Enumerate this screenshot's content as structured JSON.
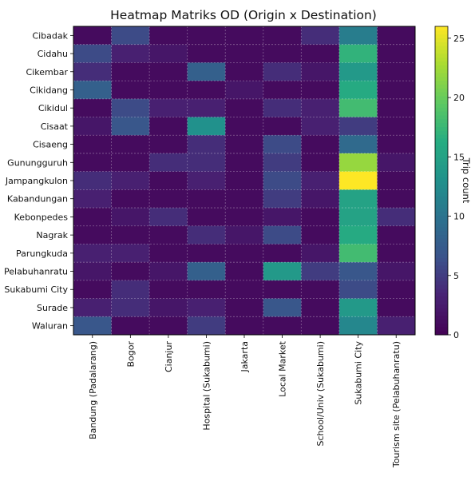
{
  "chart_data": {
    "type": "heatmap",
    "title": "Heatmap Matriks OD (Origin x Destination)",
    "rows": [
      "Cibadak",
      "Cidahu",
      "Cikembar",
      "Cikidang",
      "Cikidul",
      "Cisaat",
      "Cisaeng",
      "Gunungguruh",
      "Jampangkulon",
      "Kabandungan",
      "Kebonpedes",
      "Nagrak",
      "Parungkuda",
      "Pelabuhanratu",
      "Sukabumi City",
      "Surade",
      "Waluran"
    ],
    "columns": [
      "Bandung (Padalarang)",
      "Bogor",
      "Cianjur",
      "Hospital (Sukabumi)",
      "Jakarta",
      "Local Market",
      "School/Univ (Sukabumi)",
      "Sukabumi City",
      "Tourism site (Pelabuhanratu)"
    ],
    "values": [
      [
        1,
        6,
        1,
        1,
        1,
        1,
        4,
        11,
        1
      ],
      [
        6,
        3,
        2,
        1,
        1,
        1,
        1,
        17,
        1
      ],
      [
        4,
        1,
        1,
        8,
        1,
        4,
        2,
        14,
        1
      ],
      [
        8,
        1,
        1,
        1,
        2,
        1,
        1,
        16,
        1
      ],
      [
        1,
        6,
        3,
        3,
        1,
        4,
        3,
        18,
        1
      ],
      [
        2,
        7,
        1,
        13,
        1,
        1,
        3,
        5,
        1
      ],
      [
        1,
        1,
        1,
        4,
        1,
        6,
        1,
        9,
        1
      ],
      [
        1,
        1,
        4,
        4,
        1,
        5,
        1,
        22,
        2
      ],
      [
        4,
        3,
        1,
        3,
        1,
        6,
        3,
        26,
        1
      ],
      [
        3,
        1,
        1,
        1,
        1,
        5,
        2,
        15,
        1
      ],
      [
        1,
        2,
        4,
        1,
        1,
        2,
        1,
        15,
        4
      ],
      [
        1,
        1,
        1,
        4,
        2,
        6,
        1,
        16,
        1
      ],
      [
        3,
        3,
        1,
        1,
        1,
        1,
        2,
        18,
        1
      ],
      [
        2,
        1,
        2,
        8,
        1,
        14,
        5,
        7,
        2
      ],
      [
        1,
        4,
        1,
        1,
        1,
        1,
        1,
        6,
        1
      ],
      [
        3,
        4,
        2,
        3,
        1,
        7,
        1,
        14,
        1
      ],
      [
        7,
        1,
        1,
        5,
        1,
        1,
        1,
        12,
        3
      ]
    ],
    "colorbar": {
      "label": "Trip count",
      "min": 0,
      "max": 26,
      "ticks": [
        0,
        5,
        10,
        15,
        20,
        25
      ]
    },
    "grid": true,
    "colormap": "viridis"
  }
}
